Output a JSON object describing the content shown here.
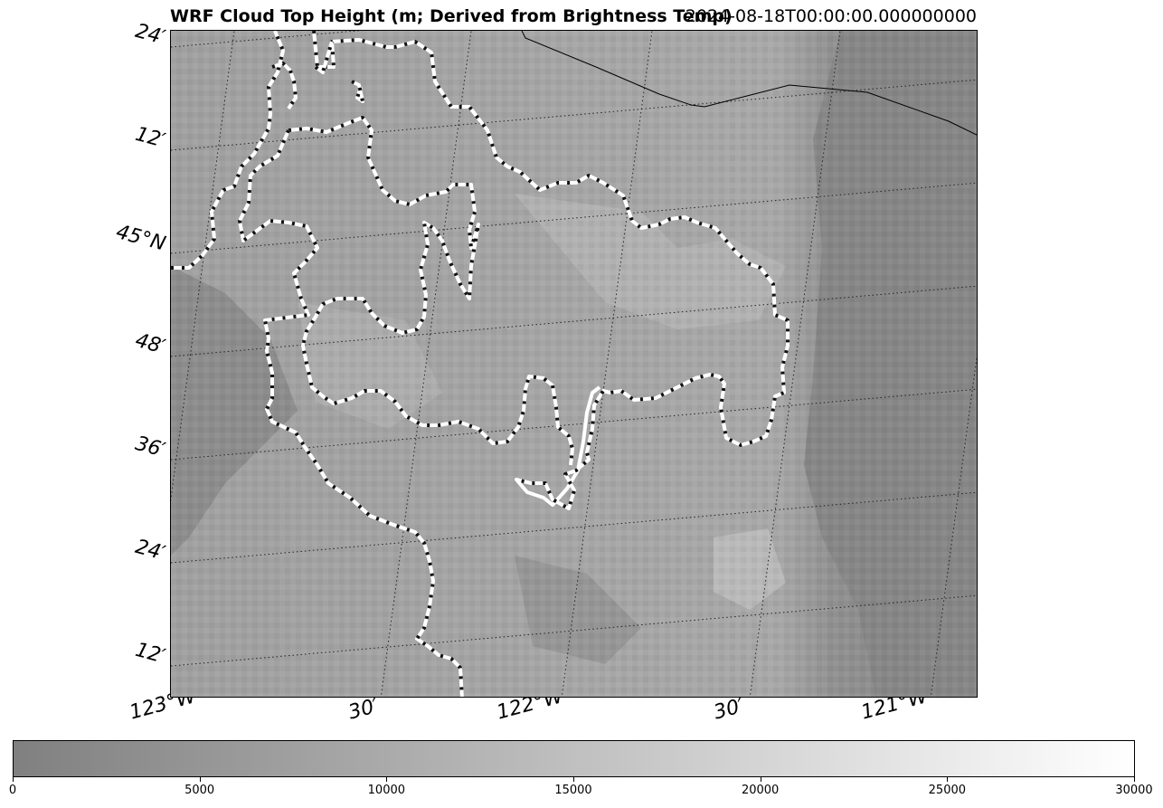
{
  "title_left": "WRF Cloud Top Height (m; Derived from Brightness Temp)",
  "title_right": "2024-08-18T00:00:00.000000000",
  "lat_labels": [
    "24′",
    "12′",
    "45°N",
    "48′",
    "36′",
    "24′",
    "12′"
  ],
  "lon_labels": [
    "123°W",
    "30′",
    "122°W",
    "30′",
    "121°W"
  ],
  "colorbar": {
    "min": 0,
    "max": 30000,
    "ticks": [
      "0",
      "5000",
      "10000",
      "15000",
      "20000",
      "25000",
      "30000"
    ],
    "colors": [
      "#808080",
      "#ffffff"
    ]
  },
  "colors": {
    "field_dark": "#8a8a8a",
    "field_mid": "#a6a6a6",
    "field_light": "#b8b8b8",
    "contour_line": "#ffffff",
    "contour_dash": "#111111",
    "gridline": "#222222"
  }
}
